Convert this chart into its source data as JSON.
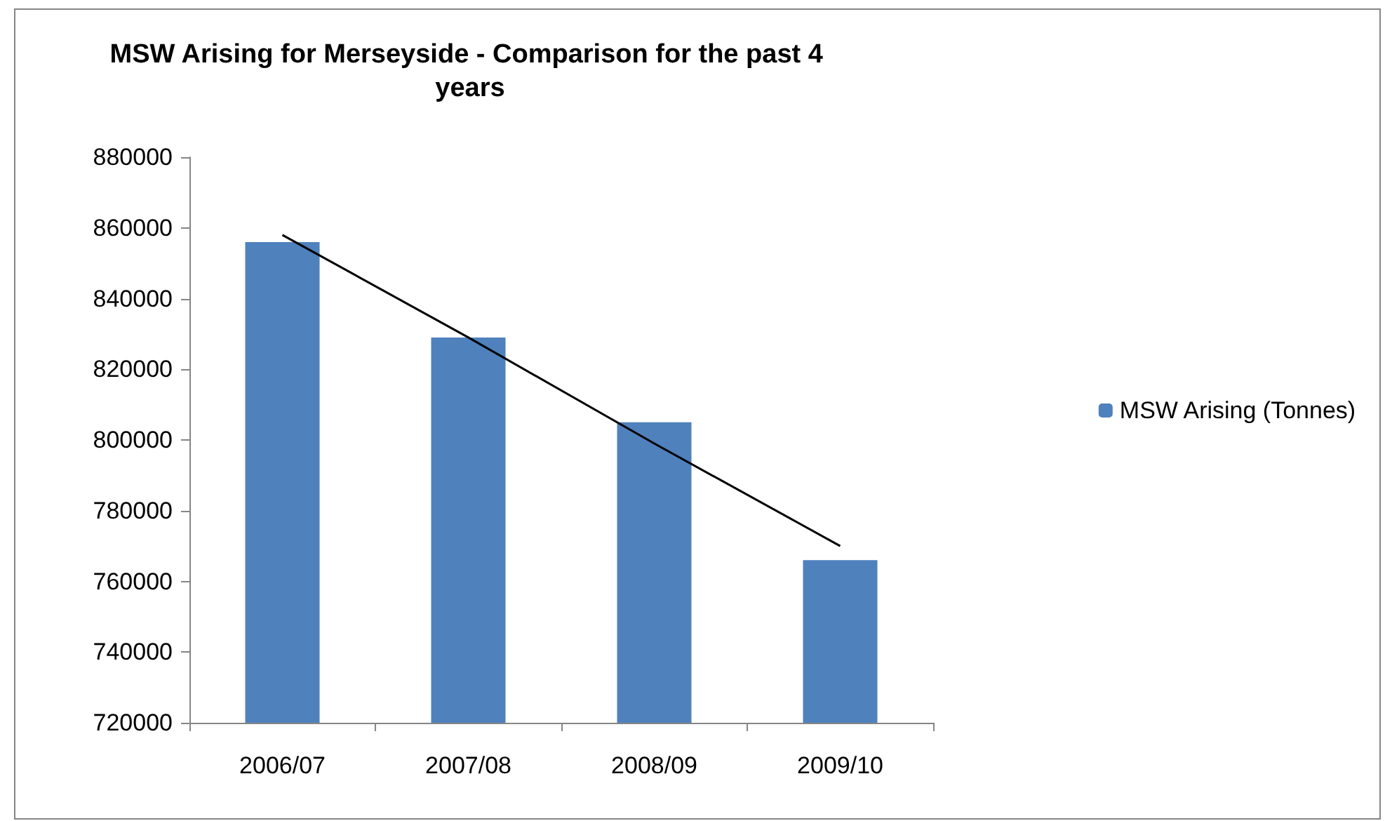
{
  "chart_data": {
    "type": "bar",
    "title": "MSW Arising for Merseyside - Comparison for the past 4 years",
    "categories": [
      "2006/07",
      "2007/08",
      "2008/09",
      "2009/10"
    ],
    "series": [
      {
        "name": "MSW Arising (Tonnes)",
        "color": "#4f81bd",
        "values": [
          856000,
          829000,
          805000,
          766000
        ]
      },
      {
        "type": "line",
        "color": "#000000",
        "values": [
          858000,
          829000,
          799000,
          770000
        ]
      }
    ],
    "ylim": [
      720000,
      880000
    ],
    "yticks": [
      720000,
      740000,
      760000,
      780000,
      800000,
      820000,
      840000,
      860000,
      880000
    ],
    "grid": false,
    "legend": "right",
    "marker": "none"
  }
}
